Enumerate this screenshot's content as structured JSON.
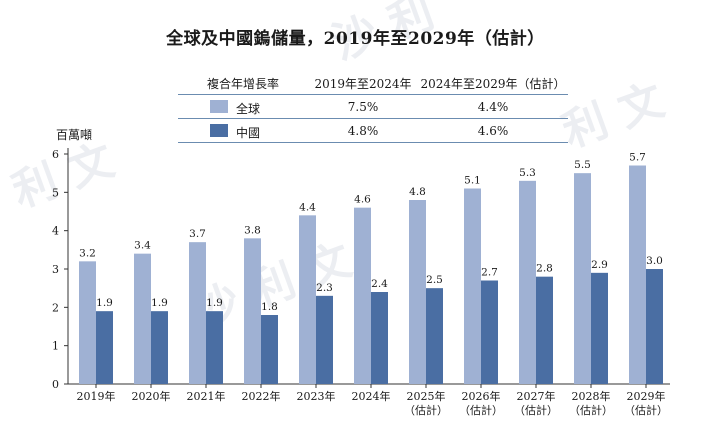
{
  "title": "全球及中國鎢儲量，2019年至2029年（估計）",
  "cagr_table": {
    "header": [
      "複合年增長率",
      "2019年至2024年",
      "2024年至2029年（估計）"
    ],
    "rows": [
      {
        "name": "全球",
        "values": [
          "7.5%",
          "4.4%"
        ],
        "color": "#9fb1d3"
      },
      {
        "name": "中國",
        "values": [
          "4.8%",
          "4.6%"
        ],
        "color": "#4a6ea3"
      }
    ]
  },
  "colors": {
    "global": "#9fb1d3",
    "china": "#4a6ea3",
    "axis": "#333333"
  },
  "chart_data": {
    "type": "bar",
    "title": "全球及中國鎢儲量，2019年至2029年（估計）",
    "ylabel": "百萬噸",
    "ylim": [
      0,
      6
    ],
    "yticks": [
      0,
      1,
      2,
      3,
      4,
      5,
      6
    ],
    "categories": [
      "2019年",
      "2020年",
      "2021年",
      "2022年",
      "2023年",
      "2024年",
      "2025年",
      "2026年",
      "2027年",
      "2028年",
      "2029年"
    ],
    "category_sublabels": [
      "",
      "",
      "",
      "",
      "",
      "",
      "（估計）",
      "（估計）",
      "（估計）",
      "（估計）",
      "（估計）"
    ],
    "series": [
      {
        "name": "全球",
        "values": [
          3.2,
          3.4,
          3.7,
          3.8,
          4.4,
          4.6,
          4.8,
          5.1,
          5.3,
          5.5,
          5.7
        ],
        "labels": [
          "3.2",
          "3.4",
          "3.7",
          "3.8",
          "4.4",
          "4.6",
          "4.8",
          "5.1",
          "5.3",
          "5.5",
          "5.7"
        ]
      },
      {
        "name": "中國",
        "values": [
          1.9,
          1.9,
          1.9,
          1.8,
          2.3,
          2.4,
          2.5,
          2.7,
          2.8,
          2.9,
          3.0
        ],
        "labels": [
          "1.9",
          "1.9",
          "1.9",
          "1.8",
          "2.3",
          "2.4",
          "2.5",
          "2.7",
          "2.8",
          "2.9",
          "3.0"
        ]
      }
    ],
    "grid": false,
    "legend": "table-above"
  },
  "watermark": "弗若斯特沙利文"
}
